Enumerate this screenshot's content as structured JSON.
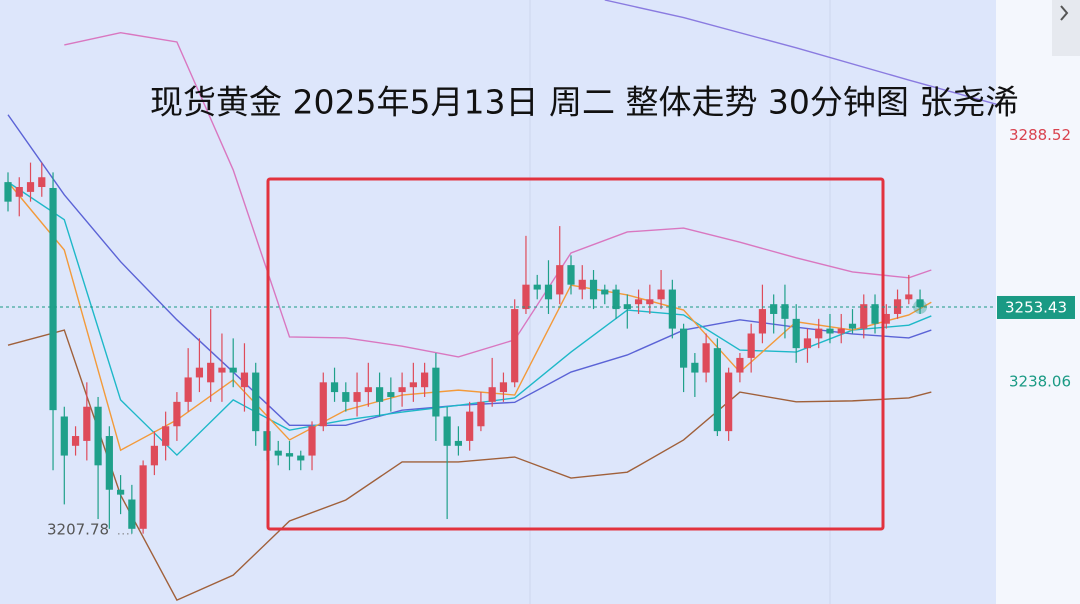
{
  "chart_data": {
    "type": "candlestick",
    "title": "现货黄金 2025年5月13日 周二 整体走势 30分钟图 张尧浠",
    "ylim": [
      3192.6,
      3316.3
    ],
    "yticks": [
      3288.52,
      3238.06
    ],
    "ytick_colors": [
      "#d9434f",
      "#1a9a84"
    ],
    "last_price": 3253.43,
    "last_price_color": "#1a9a84",
    "low_label": 3207.78,
    "up_color": "#de4b5a",
    "down_color": "#1fa08a",
    "open": [
      3279,
      3276,
      3277,
      3278,
      3277.8,
      3231,
      3225,
      3226,
      3233,
      3227,
      3216,
      3214,
      3208,
      3221,
      3225,
      3229,
      3234,
      3239,
      3238,
      3240,
      3241,
      3237,
      3240,
      3228,
      3224,
      3223.5,
      3223,
      3223,
      3229,
      3238,
      3236,
      3234,
      3236,
      3237,
      3236,
      3236,
      3237,
      3237,
      3241,
      3231,
      3226,
      3226,
      3229,
      3234,
      3236,
      3238,
      3253,
      3258,
      3258,
      3256,
      3262,
      3257,
      3259,
      3257,
      3257,
      3254,
      3254,
      3254,
      3255,
      3257,
      3249,
      3242,
      3240,
      3245,
      3228,
      3240,
      3243,
      3248,
      3254,
      3254,
      3251,
      3245,
      3247,
      3249,
      3248,
      3250,
      3249,
      3254,
      3250,
      3252,
      3255,
      3255
    ],
    "close": [
      3275,
      3278,
      3279,
      3280,
      3232.3,
      3223,
      3227,
      3233,
      3221,
      3216,
      3215,
      3208,
      3221,
      3225,
      3229,
      3234,
      3239,
      3241,
      3242,
      3241,
      3240,
      3240,
      3228,
      3224,
      3223,
      3222.8,
      3222,
      3229,
      3238,
      3236,
      3234,
      3236,
      3237,
      3234,
      3235,
      3237,
      3238,
      3240,
      3231,
      3225,
      3225,
      3232,
      3234,
      3237,
      3238,
      3253,
      3258,
      3257,
      3255,
      3262,
      3258,
      3259,
      3255,
      3256,
      3253,
      3253,
      3255,
      3255,
      3257,
      3249,
      3241,
      3240,
      3246,
      3228,
      3240,
      3243,
      3248,
      3253,
      3252,
      3251,
      3245,
      3247,
      3249,
      3248,
      3249,
      3249,
      3254,
      3250,
      3252,
      3255,
      3256,
      3253.43
    ],
    "high": [
      3281,
      3280,
      3283,
      3283,
      3281,
      3233,
      3229,
      3238,
      3235,
      3229,
      3219,
      3217,
      3222,
      3228,
      3232,
      3236,
      3245,
      3247,
      3253,
      3248,
      3247,
      3246,
      3242,
      3230,
      3226,
      3226,
      3224,
      3230,
      3240,
      3241,
      3238,
      3240,
      3242,
      3240,
      3239,
      3240,
      3242,
      3242,
      3244,
      3233,
      3229,
      3234,
      3236,
      3243,
      3240,
      3255,
      3268,
      3260,
      3263,
      3270,
      3264,
      3262,
      3261,
      3258,
      3258,
      3256,
      3257,
      3258,
      3261,
      3259,
      3250,
      3244,
      3248,
      3247,
      3241,
      3244,
      3250,
      3258,
      3256,
      3258,
      3254,
      3249,
      3251,
      3252,
      3252,
      3253,
      3256,
      3256,
      3254,
      3257,
      3260,
      3257
    ],
    "low": [
      3273,
      3272,
      3275,
      3276,
      3220,
      3213,
      3223,
      3222,
      3210,
      3208,
      3211,
      3207,
      3207,
      3219,
      3222,
      3226,
      3232,
      3236,
      3234,
      3234,
      3237,
      3232,
      3225,
      3222,
      3221,
      3220,
      3220,
      3220,
      3228,
      3234,
      3232,
      3231,
      3233,
      3231,
      3232,
      3233,
      3234,
      3235,
      3226,
      3210,
      3223,
      3224,
      3228,
      3233,
      3234,
      3237,
      3252,
      3255,
      3252,
      3254,
      3256,
      3255,
      3253,
      3254,
      3251,
      3249,
      3252,
      3252,
      3253,
      3247,
      3236,
      3235,
      3238,
      3227,
      3226,
      3238,
      3240,
      3246,
      3248,
      3247,
      3242,
      3242,
      3245,
      3246,
      3246,
      3248,
      3247,
      3248,
      3249,
      3251,
      3254,
      3252
    ],
    "lines": [
      {
        "color": "#d977c0",
        "x": [
          5,
          10,
          15,
          20,
          25,
          30,
          35,
          40,
          45,
          50,
          55,
          60,
          65,
          70,
          75,
          80,
          82
        ],
        "values": [
          3307.1,
          3309.6,
          3307.7,
          3281.5,
          3247.3,
          3247.1,
          3245.4,
          3243.2,
          3246.7,
          3264.5,
          3268.8,
          3269.6,
          3266.7,
          3263.5,
          3260.6,
          3259.4,
          3261.0
        ]
      },
      {
        "color": "#a0603a",
        "x": [
          0,
          5,
          10,
          15,
          20,
          25,
          30,
          35,
          40,
          45,
          50,
          55,
          60,
          65,
          70,
          75,
          80,
          82
        ],
        "values": [
          3245.6,
          3248.7,
          3214.9,
          3193.4,
          3198.5,
          3209.6,
          3213.9,
          3221.7,
          3221.7,
          3222.7,
          3218.4,
          3219.6,
          3226.2,
          3236.0,
          3234.0,
          3234.2,
          3234.8,
          3236.0
        ]
      },
      {
        "color": "#5b63d6",
        "x": [
          0,
          5,
          10,
          15,
          20,
          25,
          30,
          35,
          40,
          45,
          50,
          55,
          60,
          65,
          70,
          75,
          80,
          82
        ],
        "values": [
          3292.8,
          3276.4,
          3262.7,
          3250.8,
          3240.1,
          3229.2,
          3229.2,
          3232.3,
          3233.3,
          3233.9,
          3240.1,
          3243.6,
          3248.7,
          3250.8,
          3249.3,
          3247.9,
          3247.1,
          3248.7
        ]
      },
      {
        "color": "#1eb8c8",
        "x": [
          0,
          5,
          10,
          15,
          20,
          25,
          30,
          35,
          40,
          45,
          50,
          55,
          60,
          65,
          70,
          75,
          80,
          82
        ],
        "values": [
          3279.0,
          3271.3,
          3234.4,
          3223.1,
          3234.4,
          3228.2,
          3230.3,
          3231.9,
          3233.3,
          3234.8,
          3244.2,
          3252.8,
          3251.8,
          3244.6,
          3244.2,
          3248.7,
          3249.7,
          3251.6
        ]
      },
      {
        "color": "#f39a3a",
        "x": [
          0,
          5,
          10,
          15,
          20,
          25,
          30,
          35,
          40,
          45,
          50,
          55,
          60,
          65,
          70,
          75,
          80,
          82
        ],
        "values": [
          3279.0,
          3265.1,
          3224.1,
          3230.3,
          3238.5,
          3226.2,
          3232.3,
          3235.4,
          3236.4,
          3235.4,
          3257.9,
          3255.9,
          3252.8,
          3240.1,
          3250.4,
          3248.7,
          3251.8,
          3254.4
        ]
      },
      {
        "color": "#8a7be0",
        "x": [
          53,
          60,
          70,
          80,
          88
        ],
        "values": [
          3316.3,
          3312.7,
          3306.5,
          3299.9,
          3294.8
        ]
      }
    ]
  }
}
